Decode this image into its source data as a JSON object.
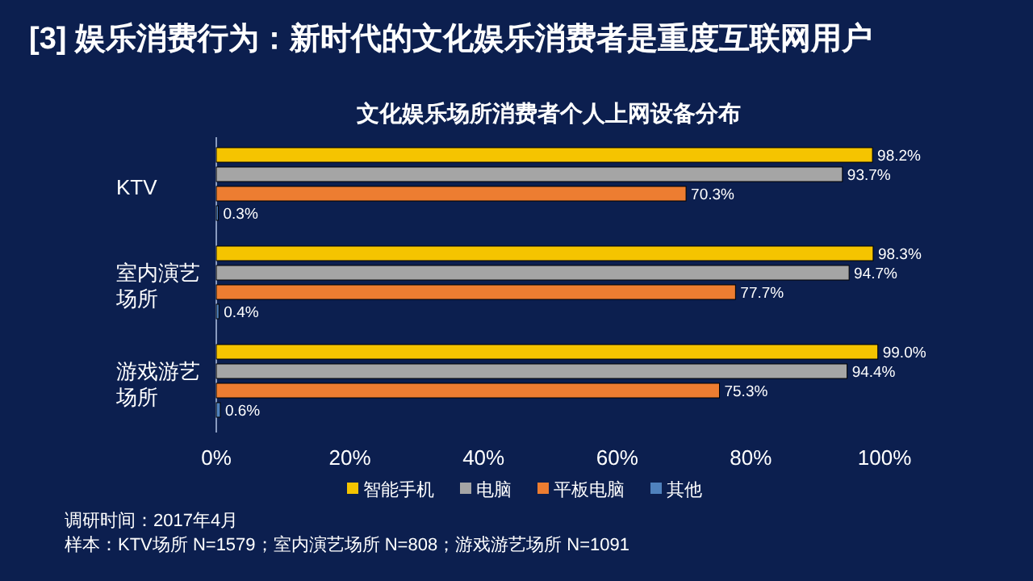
{
  "chart_data": {
    "type": "bar",
    "orientation": "horizontal",
    "title": "[3] 娱乐消费行为：新时代的文化娱乐消费者是重度互联网用户",
    "subtitle": "文化娱乐场所消费者个人上网设备分布",
    "categories": [
      "KTV",
      "室内演艺场所",
      "游戏游艺场所"
    ],
    "series": [
      {
        "name": "智能手机",
        "color": "#f5c400",
        "values": [
          98.2,
          98.3,
          99.0
        ],
        "value_labels": [
          "98.2%",
          "98.3%",
          "99.0%"
        ]
      },
      {
        "name": "电脑",
        "color": "#a5a5a5",
        "values": [
          93.7,
          94.7,
          94.4
        ],
        "value_labels": [
          "93.7%",
          "94.7%",
          "94.4%"
        ]
      },
      {
        "name": "平板电脑",
        "color": "#ed7d31",
        "values": [
          70.3,
          77.7,
          75.3
        ],
        "value_labels": [
          "70.3%",
          "77.7%",
          "75.3%"
        ]
      },
      {
        "name": "其他",
        "color": "#4f81bd",
        "values": [
          0.3,
          0.4,
          0.6
        ],
        "value_labels": [
          "0.3%",
          "0.4%",
          "0.6%"
        ]
      }
    ],
    "xlim": [
      0,
      100
    ],
    "xticks": [
      {
        "value": 0,
        "label": "0%"
      },
      {
        "value": 20,
        "label": "20%"
      },
      {
        "value": 40,
        "label": "40%"
      },
      {
        "value": 60,
        "label": "60%"
      },
      {
        "value": 80,
        "label": "80%"
      },
      {
        "value": 100,
        "label": "100%"
      }
    ],
    "grid": false,
    "legend": "bottom",
    "annotations": [
      "调研时间：2017年4月",
      "样本：KTV场所 N=1579；室内演艺场所 N=808；游戏游艺场所 N=1091"
    ]
  }
}
